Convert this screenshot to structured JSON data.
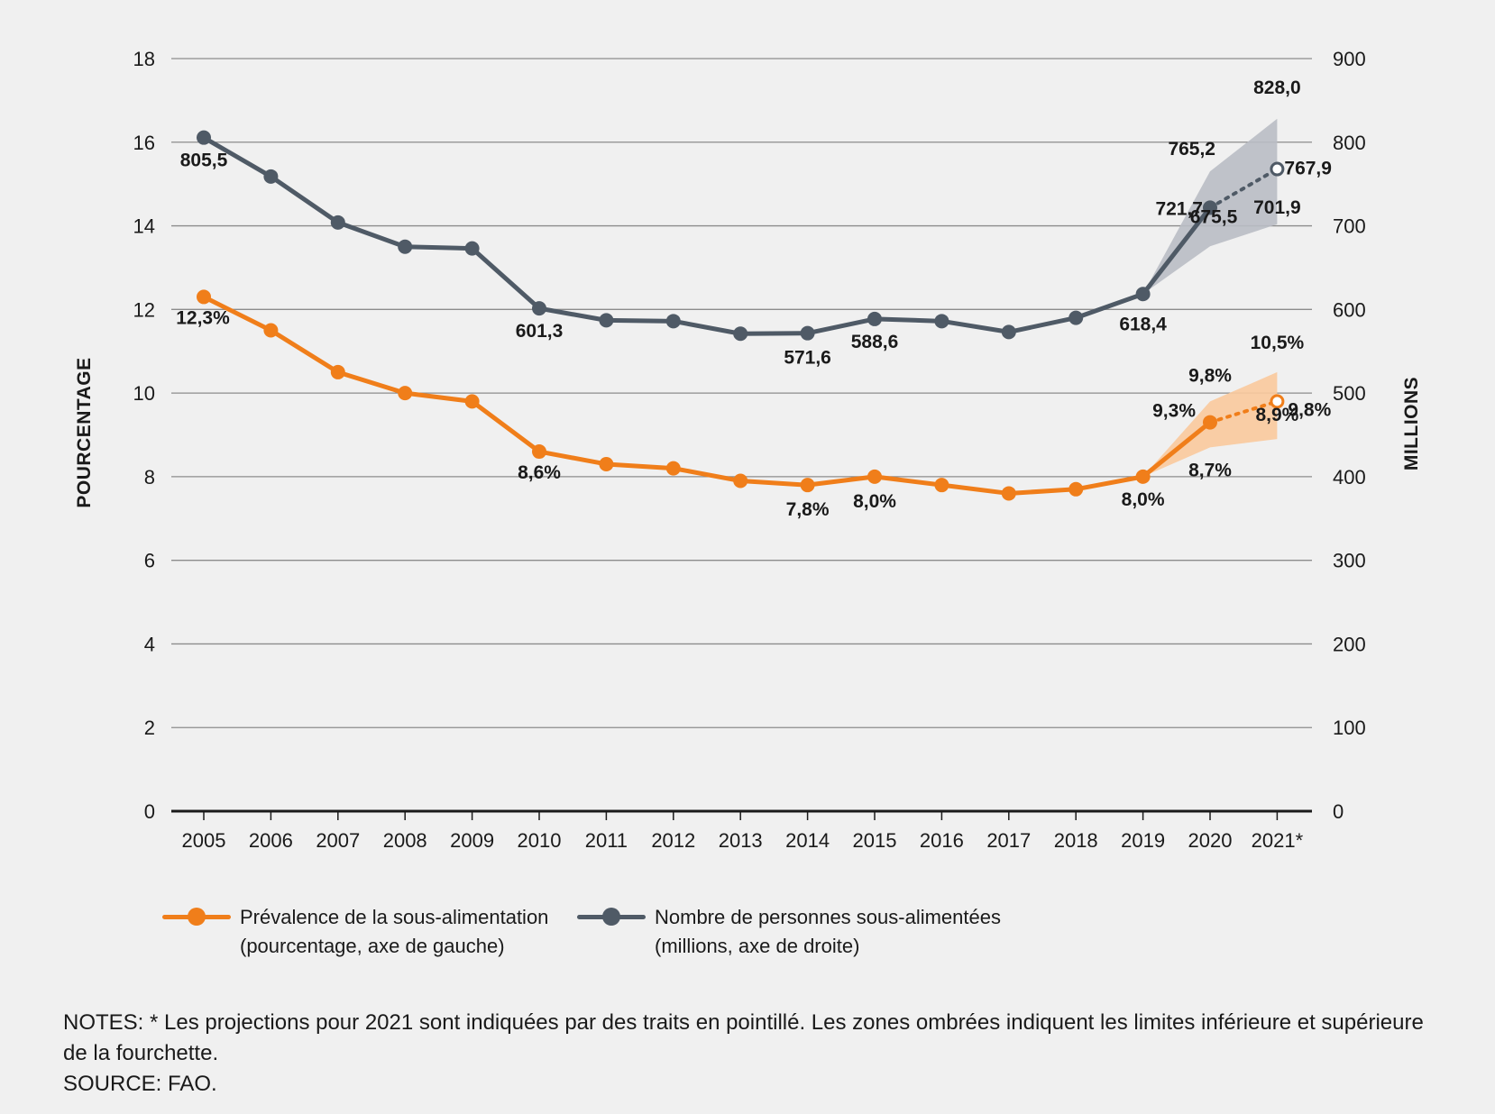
{
  "chart_data": {
    "type": "line",
    "x": [
      "2005",
      "2006",
      "2007",
      "2008",
      "2009",
      "2010",
      "2011",
      "2012",
      "2013",
      "2014",
      "2015",
      "2016",
      "2017",
      "2018",
      "2019",
      "2020",
      "2021*"
    ],
    "y_left_label": "POURCENTAGE",
    "y_right_label": "MILLIONS",
    "y_left_ticks": [
      "0",
      "2",
      "4",
      "6",
      "8",
      "10",
      "12",
      "14",
      "16",
      "18"
    ],
    "y_right_ticks": [
      "0",
      "100",
      "200",
      "300",
      "400",
      "500",
      "600",
      "700",
      "800",
      "900"
    ],
    "ylim_left": [
      0,
      18
    ],
    "ylim_right": [
      0,
      900
    ],
    "grid": true,
    "series": [
      {
        "name": "Prévalence de la sous-alimentation",
        "axis": "left",
        "color": "#f07e1a",
        "values": [
          12.3,
          11.5,
          10.5,
          10.0,
          9.8,
          8.6,
          8.3,
          8.2,
          7.9,
          7.8,
          8.0,
          7.8,
          7.6,
          7.7,
          8.0,
          9.3,
          9.8
        ],
        "projected_from_index": 15,
        "range_upper": {
          "2019": 8.0,
          "2020": 9.8,
          "2021*": 10.5
        },
        "range_lower": {
          "2019": 8.0,
          "2020": 8.7,
          "2021*": 8.9
        },
        "range_color": "#f9c99c",
        "data_labels": [
          {
            "x": "2005",
            "text": "12,3%"
          },
          {
            "x": "2010",
            "text": "8,6%"
          },
          {
            "x": "2014",
            "text": "7,8%"
          },
          {
            "x": "2015",
            "text": "8,0%"
          },
          {
            "x": "2019",
            "text": "8,0%"
          },
          {
            "x": "2020",
            "text": "9,3%"
          },
          {
            "x": "2020",
            "text": "9,8%"
          },
          {
            "x": "2020",
            "text": "8,7%"
          },
          {
            "x": "2021*",
            "text": "10,5%"
          },
          {
            "x": "2021*",
            "text": "9,8%"
          },
          {
            "x": "2021*",
            "text": "8,9%"
          }
        ]
      },
      {
        "name": "Nombre de personnes sous-alimentées",
        "axis": "right",
        "color": "#4f5a66",
        "values": [
          805.5,
          759,
          704,
          675,
          673,
          601.3,
          587,
          586,
          571,
          571.6,
          588.6,
          586,
          573,
          590,
          618.4,
          721.7,
          767.9
        ],
        "projected_from_index": 15,
        "range_upper": {
          "2019": 618.4,
          "2020": 765.2,
          "2021*": 828.0
        },
        "range_lower": {
          "2019": 618.4,
          "2020": 675.5,
          "2021*": 701.9
        },
        "range_color": "#b9bcc4",
        "data_labels": [
          {
            "x": "2005",
            "text": "805,5"
          },
          {
            "x": "2010",
            "text": "601,3"
          },
          {
            "x": "2014",
            "text": "571,6"
          },
          {
            "x": "2015",
            "text": "588,6"
          },
          {
            "x": "2019",
            "text": "618,4"
          },
          {
            "x": "2020",
            "text": "721,7"
          },
          {
            "x": "2020",
            "text": "765,2"
          },
          {
            "x": "2020",
            "text": "675,5"
          },
          {
            "x": "2021*",
            "text": "828,0"
          },
          {
            "x": "2021*",
            "text": "767,9"
          },
          {
            "x": "2021*",
            "text": "701,9"
          }
        ]
      }
    ]
  },
  "legend": {
    "items": [
      {
        "line1": "Prévalence de la sous-alimentation",
        "line2": "(pourcentage, axe de gauche)"
      },
      {
        "line1": "Nombre de personnes sous-alimentées",
        "line2": "(millions, axe de droite)"
      }
    ]
  },
  "notes": {
    "line1": "NOTES: * Les projections pour 2021 sont indiquées par des traits en pointillé. Les zones ombrées indiquent les limites inférieure et supérieure de la fourchette.",
    "source": "SOURCE: FAO."
  }
}
